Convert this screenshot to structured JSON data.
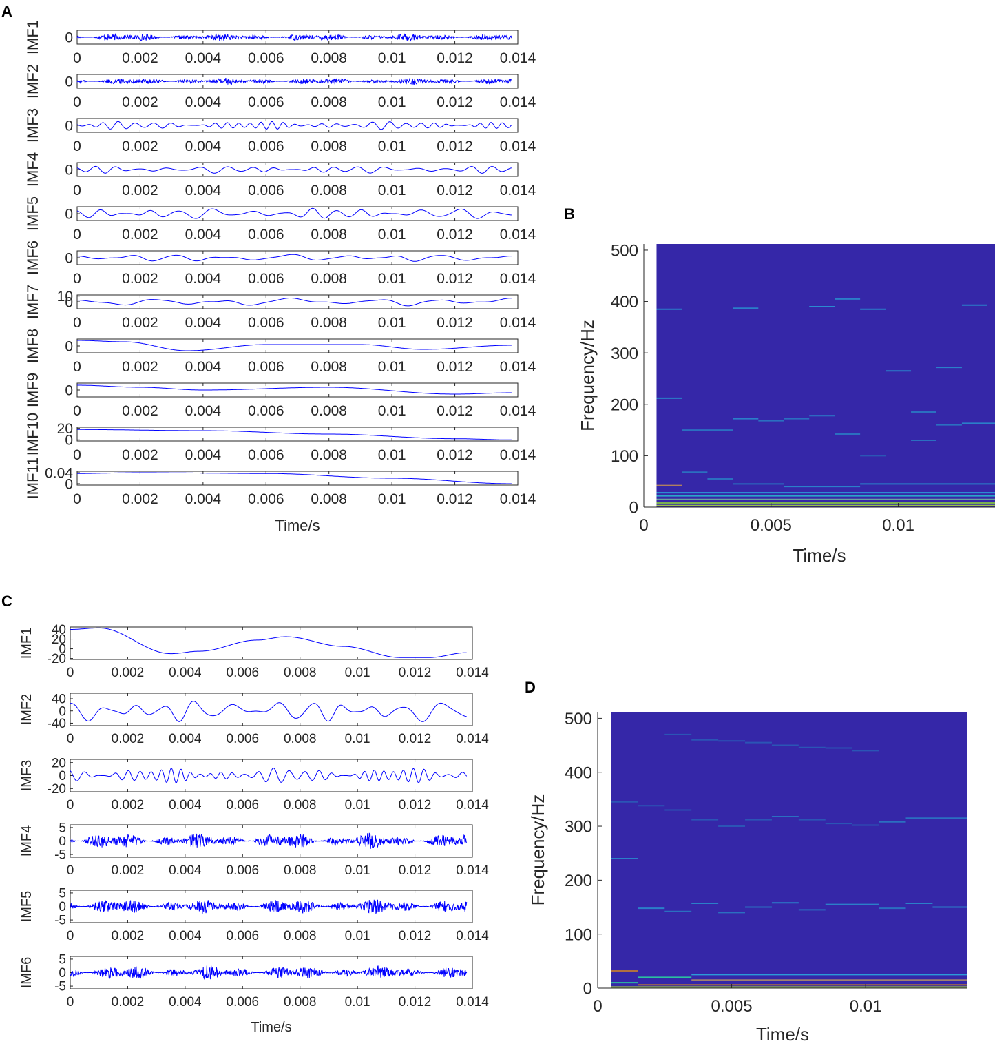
{
  "chart_data": [
    {
      "panel": "A",
      "type": "line",
      "xlabel": "Time/s",
      "xlim": [
        0,
        0.014
      ],
      "xticks": [
        0,
        0.002,
        0.004,
        0.006,
        0.008,
        0.01,
        0.012,
        0.014
      ],
      "xtick_labels": [
        "0",
        "0.002",
        "0.004",
        "0.006",
        "0.008",
        "0.01",
        "0.012",
        "0.014"
      ],
      "line_color": "#0000ff",
      "series": [
        {
          "name": "IMF1",
          "ylim": [
            -1,
            1
          ],
          "ytick_labels": [
            "0"
          ],
          "waveform": {
            "kind": "noise",
            "amp": 0.6
          }
        },
        {
          "name": "IMF2",
          "ylim": [
            -1,
            1
          ],
          "ytick_labels": [
            "0"
          ],
          "waveform": {
            "kind": "noise",
            "amp": 0.55
          }
        },
        {
          "name": "IMF3",
          "ylim": [
            -1,
            1
          ],
          "ytick_labels": [
            "0"
          ],
          "waveform": {
            "kind": "osc",
            "freq_hz": 2300,
            "amp": 0.55
          }
        },
        {
          "name": "IMF4",
          "ylim": [
            -1,
            1
          ],
          "ytick_labels": [
            "0"
          ],
          "waveform": {
            "kind": "osc",
            "freq_hz": 1300,
            "amp": 0.5
          }
        },
        {
          "name": "IMF5",
          "ylim": [
            -1,
            1
          ],
          "ytick_labels": [
            "0"
          ],
          "waveform": {
            "kind": "osc",
            "freq_hz": 1050,
            "amp": 0.75
          }
        },
        {
          "name": "IMF6",
          "ylim": [
            -1,
            1
          ],
          "ytick_labels": [
            "0"
          ],
          "waveform": {
            "kind": "osc",
            "freq_hz": 580,
            "amp": 0.55
          }
        },
        {
          "name": "IMF7",
          "ylim": [
            -12,
            12
          ],
          "ytick_labels": [
            "10",
            "0"
          ],
          "waveform": {
            "kind": "osc",
            "freq_hz": 430,
            "amp": 7
          }
        },
        {
          "name": "IMF8",
          "ylim": [
            -1,
            1
          ],
          "ytick_labels": [
            "0"
          ],
          "waveform": {
            "kind": "slow",
            "points": [
              [
                0,
                0.8
              ],
              [
                0.0015,
                0.6
              ],
              [
                0.0035,
                -0.7
              ],
              [
                0.006,
                0.2
              ],
              [
                0.009,
                0.2
              ],
              [
                0.011,
                -0.5
              ],
              [
                0.0138,
                0.1
              ]
            ]
          }
        },
        {
          "name": "IMF9",
          "ylim": [
            -1,
            1
          ],
          "ytick_labels": [
            "0"
          ],
          "waveform": {
            "kind": "slow",
            "points": [
              [
                0,
                0.7
              ],
              [
                0.002,
                0.4
              ],
              [
                0.004,
                0.0
              ],
              [
                0.008,
                0.4
              ],
              [
                0.012,
                -0.6
              ],
              [
                0.0138,
                -0.4
              ]
            ]
          }
        },
        {
          "name": "IMF10",
          "ylim": [
            -2,
            22
          ],
          "ytick_labels": [
            "20",
            "0"
          ],
          "waveform": {
            "kind": "slow",
            "points": [
              [
                0,
                18
              ],
              [
                0.004,
                16
              ],
              [
                0.008,
                10
              ],
              [
                0.012,
                2
              ],
              [
                0.0138,
                0
              ]
            ]
          }
        },
        {
          "name": "IMF11",
          "ylim": [
            -0.005,
            0.045
          ],
          "ytick_labels": [
            "0.04",
            "0"
          ],
          "waveform": {
            "kind": "slow",
            "points": [
              [
                0,
                0.037
              ],
              [
                0.002,
                0.04
              ],
              [
                0.006,
                0.037
              ],
              [
                0.01,
                0.02
              ],
              [
                0.0138,
                0.0
              ]
            ]
          }
        }
      ]
    },
    {
      "panel": "B",
      "type": "heatmap",
      "xlabel": "Time/s",
      "ylabel": "Frequency/Hz",
      "xlim": [
        0,
        0.0138
      ],
      "ylim": [
        0,
        512
      ],
      "xticks": [
        0,
        0.005,
        0.01
      ],
      "xtick_labels": [
        "0",
        "0.005",
        "0.01"
      ],
      "yticks": [
        0,
        100,
        200,
        300,
        400,
        500
      ],
      "ytick_labels": [
        "0",
        "100",
        "200",
        "300",
        "400",
        "500"
      ],
      "background_color": "#3527a8",
      "segments": [
        {
          "x": [
            0.0005,
            0.0015
          ],
          "y": 385,
          "color": "#2b7fc9"
        },
        {
          "x": [
            0.0035,
            0.0045
          ],
          "y": 387,
          "color": "#2b7fc9"
        },
        {
          "x": [
            0.0065,
            0.0075
          ],
          "y": 390,
          "color": "#2b8ad0"
        },
        {
          "x": [
            0.0075,
            0.0085
          ],
          "y": 405,
          "color": "#2b7fc9"
        },
        {
          "x": [
            0.0085,
            0.0095
          ],
          "y": 385,
          "color": "#2b7fc9"
        },
        {
          "x": [
            0.0125,
            0.0135
          ],
          "y": 393,
          "color": "#2b7fc9"
        },
        {
          "x": [
            0.0005,
            0.0015
          ],
          "y": 212,
          "color": "#2b7fc9"
        },
        {
          "x": [
            0.0015,
            0.0035
          ],
          "y": 150,
          "color": "#2b6fc0"
        },
        {
          "x": [
            0.0035,
            0.0045
          ],
          "y": 172,
          "color": "#2b7fc9"
        },
        {
          "x": [
            0.0045,
            0.0055
          ],
          "y": 168,
          "color": "#2b6fc0"
        },
        {
          "x": [
            0.0055,
            0.0065
          ],
          "y": 172,
          "color": "#2b6fc0"
        },
        {
          "x": [
            0.0065,
            0.0075
          ],
          "y": 178,
          "color": "#2b7fc9"
        },
        {
          "x": [
            0.0075,
            0.0085
          ],
          "y": 142,
          "color": "#2b6fc0"
        },
        {
          "x": [
            0.0085,
            0.0095
          ],
          "y": 100,
          "color": "#2b55b5"
        },
        {
          "x": [
            0.0095,
            0.0105
          ],
          "y": 265,
          "color": "#2b7fc9"
        },
        {
          "x": [
            0.0105,
            0.0115
          ],
          "y": 185,
          "color": "#2b6fc0"
        },
        {
          "x": [
            0.0105,
            0.0115
          ],
          "y": 130,
          "color": "#2b6fc0"
        },
        {
          "x": [
            0.0115,
            0.0125
          ],
          "y": 272,
          "color": "#2b7fc9"
        },
        {
          "x": [
            0.0115,
            0.0125
          ],
          "y": 160,
          "color": "#2b6fc0"
        },
        {
          "x": [
            0.0125,
            0.0138
          ],
          "y": 163,
          "color": "#2b7fc9"
        },
        {
          "x": [
            0.0015,
            0.0025
          ],
          "y": 68,
          "color": "#2b6fc0"
        },
        {
          "x": [
            0.0025,
            0.0035
          ],
          "y": 55,
          "color": "#2b6fc0"
        },
        {
          "x": [
            0.0035,
            0.0055
          ],
          "y": 45,
          "color": "#2b6fc0"
        },
        {
          "x": [
            0.0055,
            0.0085
          ],
          "y": 40,
          "color": "#2b7fc9"
        },
        {
          "x": [
            0.0085,
            0.0138
          ],
          "y": 45,
          "color": "#2b7fc9"
        },
        {
          "x": [
            0.0005,
            0.0015
          ],
          "y": 42,
          "color": "#b08060"
        },
        {
          "x": [
            0.0005,
            0.0138
          ],
          "y": 28,
          "color": "#2b9bd8"
        },
        {
          "x": [
            0.0005,
            0.0138
          ],
          "y": 22,
          "color": "#2ba6c8"
        },
        {
          "x": [
            0.0005,
            0.0138
          ],
          "y": 15,
          "color": "#6aa2a0"
        },
        {
          "x": [
            0.0005,
            0.0138
          ],
          "y": 8,
          "color": "#7ab050"
        },
        {
          "x": [
            0.0005,
            0.0138
          ],
          "y": 3,
          "color": "#9ac14a"
        }
      ]
    },
    {
      "panel": "C",
      "type": "line",
      "xlabel": "Time/s",
      "xlim": [
        0,
        0.014
      ],
      "xticks": [
        0,
        0.002,
        0.004,
        0.006,
        0.008,
        0.01,
        0.012,
        0.014
      ],
      "xtick_labels": [
        "0",
        "0.002",
        "0.004",
        "0.006",
        "0.008",
        "0.01",
        "0.012",
        "0.014"
      ],
      "line_color": "#0000ff",
      "series": [
        {
          "name": "IMF1",
          "ylim": [
            -22,
            45
          ],
          "yticks": [
            40,
            20,
            0,
            -20
          ],
          "ytick_labels": [
            "40",
            "20",
            "0",
            "-20"
          ],
          "waveform": {
            "kind": "slow",
            "points": [
              [
                0,
                40
              ],
              [
                0.001,
                43
              ],
              [
                0.0035,
                -10
              ],
              [
                0.0045,
                -5
              ],
              [
                0.0065,
                18
              ],
              [
                0.0075,
                25
              ],
              [
                0.0095,
                5
              ],
              [
                0.0115,
                -18
              ],
              [
                0.0125,
                -18
              ],
              [
                0.0138,
                -8
              ]
            ]
          }
        },
        {
          "name": "IMF2",
          "ylim": [
            -48,
            58
          ],
          "yticks": [
            40,
            0,
            -40
          ],
          "ytick_labels": [
            "40",
            "0",
            "-40"
          ],
          "waveform": {
            "kind": "osc",
            "freq_hz": 830,
            "amp": 35
          }
        },
        {
          "name": "IMF3",
          "ylim": [
            -25,
            25
          ],
          "yticks": [
            20,
            0,
            -20
          ],
          "ytick_labels": [
            "20",
            "0",
            "-20"
          ],
          "waveform": {
            "kind": "osc",
            "freq_hz": 2400,
            "amp": 11
          }
        },
        {
          "name": "IMF4",
          "ylim": [
            -6,
            6
          ],
          "yticks": [
            5,
            0,
            -5
          ],
          "ytick_labels": [
            "5",
            "0",
            "-5"
          ],
          "waveform": {
            "kind": "noise",
            "amp": 3.2
          }
        },
        {
          "name": "IMF5",
          "ylim": [
            -6,
            6
          ],
          "yticks": [
            5,
            0,
            -5
          ],
          "ytick_labels": [
            "5",
            "0",
            "-5"
          ],
          "waveform": {
            "kind": "noise",
            "amp": 3.0
          }
        },
        {
          "name": "IMF6",
          "ylim": [
            -6,
            6
          ],
          "yticks": [
            5,
            0,
            -5
          ],
          "ytick_labels": [
            "5",
            "0",
            "-5"
          ],
          "waveform": {
            "kind": "noise",
            "amp": 2.8
          }
        }
      ]
    },
    {
      "panel": "D",
      "type": "heatmap",
      "xlabel": "Time/s",
      "ylabel": "Frequency/Hz",
      "xlim": [
        0,
        0.0138
      ],
      "ylim": [
        0,
        512
      ],
      "xticks": [
        0,
        0.005,
        0.01
      ],
      "xtick_labels": [
        "0",
        "0.005",
        "0.01"
      ],
      "yticks": [
        0,
        100,
        200,
        300,
        400,
        500
      ],
      "ytick_labels": [
        "0",
        "100",
        "200",
        "300",
        "400",
        "500"
      ],
      "background_color": "#3527a8",
      "segments": [
        {
          "x": [
            0.0025,
            0.0035
          ],
          "y": 470,
          "color": "#2b55b5"
        },
        {
          "x": [
            0.0035,
            0.0045
          ],
          "y": 460,
          "color": "#2b55b5"
        },
        {
          "x": [
            0.0045,
            0.0055
          ],
          "y": 458,
          "color": "#2b55b5"
        },
        {
          "x": [
            0.0055,
            0.0065
          ],
          "y": 455,
          "color": "#2b55b5"
        },
        {
          "x": [
            0.0065,
            0.0075
          ],
          "y": 450,
          "color": "#2b55b5"
        },
        {
          "x": [
            0.0075,
            0.0085
          ],
          "y": 446,
          "color": "#2b55b5"
        },
        {
          "x": [
            0.0085,
            0.0095
          ],
          "y": 445,
          "color": "#2b55b5"
        },
        {
          "x": [
            0.0095,
            0.0105
          ],
          "y": 440,
          "color": "#2b55b5"
        },
        {
          "x": [
            0.0005,
            0.0015
          ],
          "y": 345,
          "color": "#2b55b5"
        },
        {
          "x": [
            0.0015,
            0.0025
          ],
          "y": 338,
          "color": "#2b55b5"
        },
        {
          "x": [
            0.0025,
            0.0035
          ],
          "y": 330,
          "color": "#2b55b5"
        },
        {
          "x": [
            0.0035,
            0.0045
          ],
          "y": 312,
          "color": "#2b55b5"
        },
        {
          "x": [
            0.0045,
            0.0055
          ],
          "y": 300,
          "color": "#2b55b5"
        },
        {
          "x": [
            0.0055,
            0.0065
          ],
          "y": 312,
          "color": "#2b55b5"
        },
        {
          "x": [
            0.0065,
            0.0075
          ],
          "y": 318,
          "color": "#2b6fc0"
        },
        {
          "x": [
            0.0075,
            0.0085
          ],
          "y": 312,
          "color": "#2b55b5"
        },
        {
          "x": [
            0.0085,
            0.0095
          ],
          "y": 305,
          "color": "#2b55b5"
        },
        {
          "x": [
            0.0095,
            0.0105
          ],
          "y": 302,
          "color": "#2b55b5"
        },
        {
          "x": [
            0.0105,
            0.0115
          ],
          "y": 308,
          "color": "#2b6fc0"
        },
        {
          "x": [
            0.0115,
            0.0138
          ],
          "y": 315,
          "color": "#2b6fc0"
        },
        {
          "x": [
            0.0005,
            0.0015
          ],
          "y": 240,
          "color": "#2b7fc9"
        },
        {
          "x": [
            0.0015,
            0.0025
          ],
          "y": 148,
          "color": "#2b7fc9"
        },
        {
          "x": [
            0.0025,
            0.0035
          ],
          "y": 142,
          "color": "#2b6fc0"
        },
        {
          "x": [
            0.0035,
            0.0045
          ],
          "y": 157,
          "color": "#2b7fc9"
        },
        {
          "x": [
            0.0045,
            0.0055
          ],
          "y": 140,
          "color": "#2b6fc0"
        },
        {
          "x": [
            0.0055,
            0.0065
          ],
          "y": 150,
          "color": "#2b6fc0"
        },
        {
          "x": [
            0.0065,
            0.0075
          ],
          "y": 158,
          "color": "#2b7fc9"
        },
        {
          "x": [
            0.0075,
            0.0085
          ],
          "y": 145,
          "color": "#2b6fc0"
        },
        {
          "x": [
            0.0085,
            0.0105
          ],
          "y": 155,
          "color": "#2b7fc9"
        },
        {
          "x": [
            0.0105,
            0.0115
          ],
          "y": 148,
          "color": "#2b6fc0"
        },
        {
          "x": [
            0.0115,
            0.0125
          ],
          "y": 157,
          "color": "#2b7fc9"
        },
        {
          "x": [
            0.0125,
            0.0138
          ],
          "y": 150,
          "color": "#2b7fc9"
        },
        {
          "x": [
            0.0005,
            0.0015
          ],
          "y": 32,
          "color": "#b07040"
        },
        {
          "x": [
            0.0015,
            0.0035
          ],
          "y": 20,
          "color": "#2bc0a0"
        },
        {
          "x": [
            0.0035,
            0.0138
          ],
          "y": 25,
          "color": "#2b9bd8"
        },
        {
          "x": [
            0.0035,
            0.0138
          ],
          "y": 15,
          "color": "#a08070"
        },
        {
          "x": [
            0.0005,
            0.0015
          ],
          "y": 10,
          "color": "#2bc0a0"
        },
        {
          "x": [
            0.0015,
            0.0138
          ],
          "y": 6,
          "color": "#b07040"
        },
        {
          "x": [
            0.0005,
            0.0138
          ],
          "y": 2,
          "color": "#9ac14a"
        }
      ]
    }
  ],
  "figure": {
    "panel_labels": [
      "A",
      "B",
      "C",
      "D"
    ]
  }
}
